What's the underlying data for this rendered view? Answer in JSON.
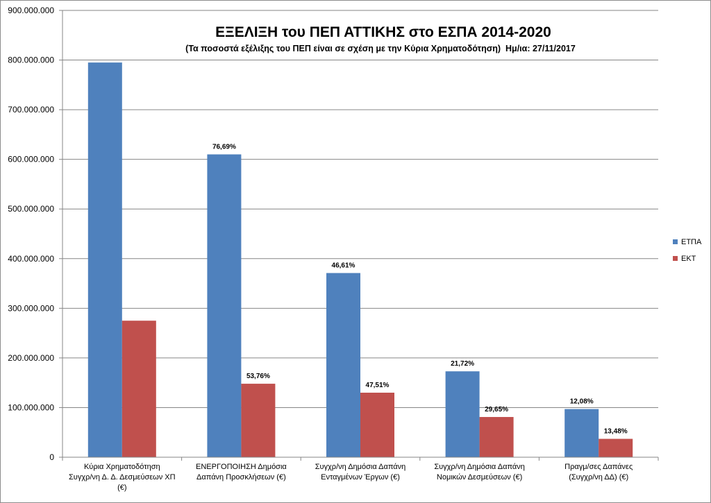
{
  "chart_data": {
    "type": "bar",
    "title": "ΕΞΕΛΙΞΗ του ΠΕΠ ΑΤΤΙΚΗΣ στο ΕΣΠΑ 2014-2020",
    "subtitle": "(Τα ποσοστά εξέλιξης του ΠΕΠ είναι σε σχέση με την Κύρια Χρηματοδότηση)  Ημ/ια: 27/11/2017",
    "xlabel": "",
    "ylabel": "",
    "ylim": [
      0,
      900000000
    ],
    "yticks": [
      "0",
      "100.000.000",
      "200.000.000",
      "300.000.000",
      "400.000.000",
      "500.000.000",
      "600.000.000",
      "700.000.000",
      "800.000.000",
      "900.000.000"
    ],
    "categories": [
      [
        "Κύρια Χρηματοδότηση",
        "Συγχρ/νη Δ. Δ. Δεσμεύσεων ΧΠ",
        "(€)"
      ],
      [
        "ΕΝΕΡΓΟΠΟΙΗΣΗ Δημόσια",
        "Δαπάνη Προσκλήσεων (€)"
      ],
      [
        "Συγχρ/νη Δημόσια Δαπάνη",
        "Ενταγμένων Έργων (€)"
      ],
      [
        "Συγχρ/νη Δημόσια Δαπάνη",
        "Νομικών Δεσμεύσεων (€)"
      ],
      [
        "Πραγμ/σες Δαπάνες",
        "(Συγχρ/νη ΔΔ) (€)"
      ]
    ],
    "series": [
      {
        "name": "ΕΤΠΑ",
        "color": "#4f81bd",
        "values": [
          795000000,
          610000000,
          371000000,
          173000000,
          97000000
        ],
        "labels": [
          "",
          "76,69%",
          "46,61%",
          "21,72%",
          "12,08%"
        ]
      },
      {
        "name": "ΕΚΤ",
        "color": "#c0504d",
        "values": [
          275000000,
          148000000,
          130000000,
          81000000,
          37000000
        ],
        "labels": [
          "",
          "53,76%",
          "47,51%",
          "29,65%",
          "13,48%"
        ]
      }
    ],
    "grid": true,
    "legend": "right"
  }
}
